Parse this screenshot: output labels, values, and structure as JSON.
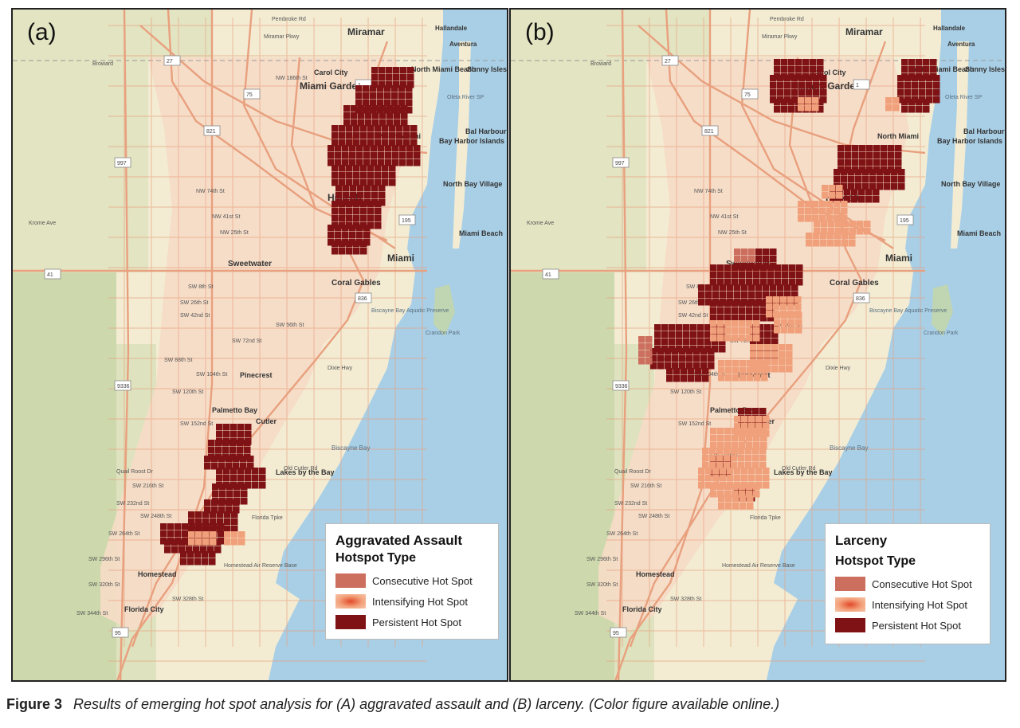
{
  "panels": [
    {
      "letter": "(a)",
      "legend_title": "Aggravated Assault",
      "legend_subtitle": "Hotspot Type"
    },
    {
      "letter": "(b)",
      "legend_title": "Larceny",
      "legend_subtitle": "Hotspot Type"
    }
  ],
  "legend_items": [
    {
      "label": "Consecutive Hot Spot",
      "color": "#cd6f5f"
    },
    {
      "label": "Intensifying Hot Spot",
      "color": "#f0a07a"
    },
    {
      "label": "Persistent Hot Spot",
      "color": "#7f1214"
    }
  ],
  "colors": {
    "water": "#a9cfe6",
    "land": "#f3ecd3",
    "urban": "#f6dcc6",
    "park": "#c5d6a4",
    "road": "#e8a07e",
    "persistent": "#7f1214",
    "intensifying": "#f0a07a",
    "consecutive": "#cd6f5f"
  },
  "map_labels": {
    "bold": [
      "Miramar",
      "Miami Gardens",
      "Hialeah",
      "Miami",
      "Sweetwater",
      "Coral Gables",
      "Pinecrest",
      "Palmetto Bay",
      "Cutler",
      "Homestead",
      "Florida City",
      "Lakes by the Bay",
      "North Miami",
      "North Miami Beach",
      "Sunny Isles Beach",
      "Bal Harbour",
      "Bay Harbor Islands",
      "North Bay Village",
      "Miami Beach",
      "Hallandale",
      "Aventura",
      "Carol City"
    ],
    "water": [
      "Biscayne Bay",
      "Biscayne Bay Aquatic Preserve",
      "Crandon Park",
      "Oleta River SP"
    ],
    "streets": [
      "Pembroke Rd",
      "Miramar Pkwy",
      "NW 186th St",
      "NW 74th St",
      "NW 41st St",
      "NW 25th St",
      "SW 8th St",
      "SW 26th St",
      "SW 42nd St",
      "SW 56th St",
      "SW 72nd St",
      "SW 88th St",
      "SW 104th St",
      "SW 120th St",
      "SW 152nd St",
      "SW 184th St",
      "Quail Roost Dr",
      "SW 216th St",
      "SW 232nd St",
      "SW 248th St",
      "SW 264th St",
      "SW 296th St",
      "SW 320th St",
      "SW 328th St",
      "SW 344th St",
      "Broward",
      "Krome Ave",
      "Old Cutler Rd",
      "Homestead Air Reserve Base",
      "Florida Tpke",
      "Dixie Hwy"
    ],
    "shields": [
      "27",
      "75",
      "821",
      "997",
      "1",
      "41",
      "836",
      "9336",
      "95",
      "195"
    ]
  },
  "caption": {
    "label": "Figure 3",
    "text": "Results of emerging hot spot analysis for (A) aggravated assault and (B) larceny. (Color figure available online.)"
  }
}
